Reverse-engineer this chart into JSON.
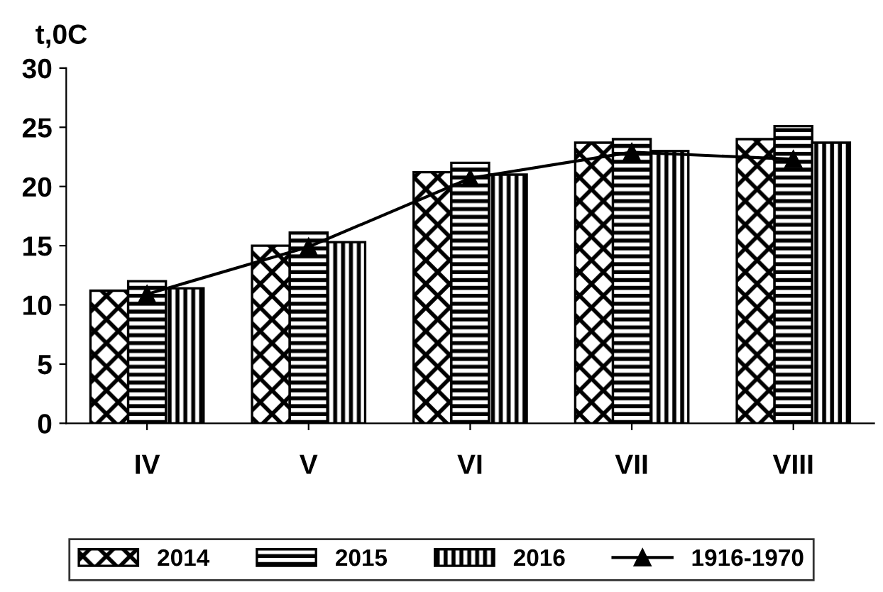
{
  "chart_data": {
    "type": "bar",
    "ylabel": "t,0C",
    "categories": [
      "IV",
      "V",
      "VI",
      "VII",
      "VIII"
    ],
    "series": [
      {
        "name": "2014",
        "color": "#000000",
        "values": [
          11.2,
          15.0,
          21.2,
          23.7,
          24.0
        ]
      },
      {
        "name": "2015",
        "color": "#000000",
        "values": [
          12.0,
          16.1,
          22.0,
          24.0,
          25.1
        ]
      },
      {
        "name": "2016",
        "color": "#000000",
        "values": [
          11.4,
          15.3,
          21.0,
          23.0,
          23.7
        ]
      },
      {
        "name": "1916-1970",
        "type": "line",
        "color": "#000000",
        "values": [
          10.9,
          14.9,
          20.7,
          22.9,
          22.3
        ]
      }
    ],
    "ylim": [
      0,
      30
    ],
    "yticks": [
      0,
      5,
      10,
      15,
      20,
      25,
      30
    ],
    "grid": false,
    "legend": "bottom",
    "marker": "triangle",
    "line_style": "solid"
  }
}
